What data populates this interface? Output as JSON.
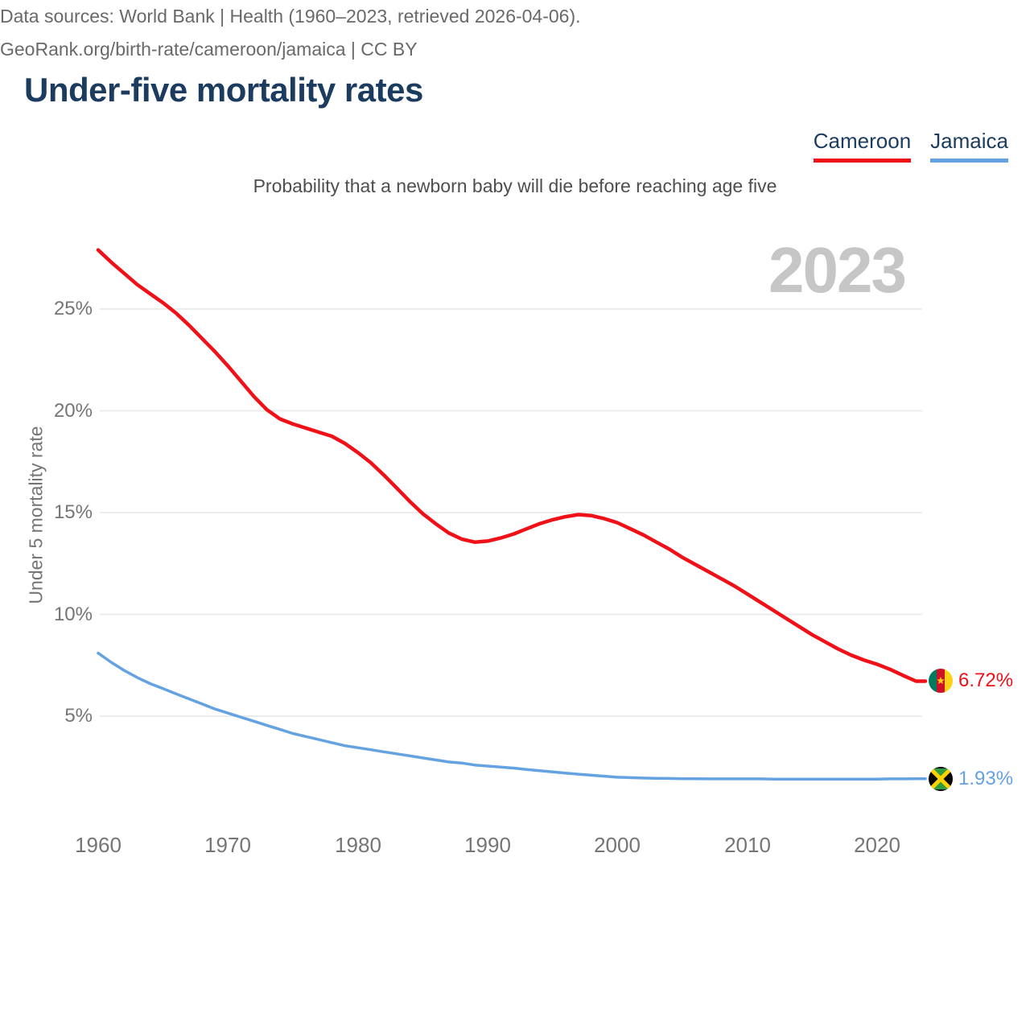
{
  "header": {
    "title": "Under-five mortality rates"
  },
  "subtitle": "Probability that a newborn baby will die before reaching age five",
  "watermark_year": "2023",
  "colors": {
    "title": "#1b3c5f",
    "cameroon_red": "#f01118",
    "jamaica_blue": "#64a2e2",
    "gridline": "#ececec",
    "tick_text": "#757575",
    "watermark": "#c6c6c6"
  },
  "chart_data": {
    "type": "line",
    "title": "Under-five mortality rates",
    "subtitle": "Probability that a newborn baby will die before reaching age five",
    "xlabel": "",
    "ylabel": "Under 5 mortality rate",
    "xlim": [
      1960,
      2023
    ],
    "ylim": [
      0,
      28.5
    ],
    "grid": "horizontal",
    "legend_position": "top-right",
    "y_tick_values": [
      25,
      20,
      15,
      10,
      5
    ],
    "y_tick_labels": [
      "25%",
      "20%",
      "15%",
      "10%",
      "5%"
    ],
    "x_tick_values": [
      1960,
      1970,
      1980,
      1990,
      2000,
      2010,
      2020
    ],
    "x_tick_labels": [
      "1960",
      "1970",
      "1980",
      "1990",
      "2000",
      "2010",
      "2020"
    ],
    "x": [
      1960,
      1961,
      1962,
      1963,
      1964,
      1965,
      1966,
      1967,
      1968,
      1969,
      1970,
      1971,
      1972,
      1973,
      1974,
      1975,
      1976,
      1977,
      1978,
      1979,
      1980,
      1981,
      1982,
      1983,
      1984,
      1985,
      1986,
      1987,
      1988,
      1989,
      1990,
      1991,
      1992,
      1993,
      1994,
      1995,
      1996,
      1997,
      1998,
      1999,
      2000,
      2001,
      2002,
      2003,
      2004,
      2005,
      2006,
      2007,
      2008,
      2009,
      2010,
      2011,
      2012,
      2013,
      2014,
      2015,
      2016,
      2017,
      2018,
      2019,
      2020,
      2021,
      2022,
      2023
    ],
    "series": [
      {
        "name": "Cameroon",
        "color": "#f01118",
        "end_label": "6.72%",
        "flag_icon": "cameroon-flag-icon",
        "values": [
          27.9,
          27.3,
          26.75,
          26.2,
          25.75,
          25.3,
          24.8,
          24.2,
          23.55,
          22.9,
          22.2,
          21.45,
          20.7,
          20.05,
          19.6,
          19.35,
          19.15,
          18.95,
          18.75,
          18.4,
          17.95,
          17.45,
          16.85,
          16.2,
          15.55,
          14.95,
          14.45,
          14.0,
          13.7,
          13.55,
          13.6,
          13.75,
          13.95,
          14.2,
          14.45,
          14.65,
          14.8,
          14.9,
          14.85,
          14.7,
          14.5,
          14.2,
          13.9,
          13.55,
          13.2,
          12.8,
          12.45,
          12.1,
          11.75,
          11.4,
          11.0,
          10.6,
          10.2,
          9.8,
          9.4,
          9.0,
          8.65,
          8.3,
          8.0,
          7.75,
          7.55,
          7.3,
          7.0,
          6.72
        ]
      },
      {
        "name": "Jamaica",
        "color": "#64a2e2",
        "end_label": "1.93%",
        "flag_icon": "jamaica-flag-icon",
        "values": [
          8.1,
          7.65,
          7.25,
          6.9,
          6.6,
          6.35,
          6.1,
          5.85,
          5.6,
          5.35,
          5.15,
          4.95,
          4.75,
          4.55,
          4.35,
          4.15,
          4.0,
          3.85,
          3.7,
          3.55,
          3.45,
          3.35,
          3.25,
          3.15,
          3.05,
          2.95,
          2.85,
          2.75,
          2.7,
          2.6,
          2.55,
          2.5,
          2.45,
          2.38,
          2.32,
          2.26,
          2.2,
          2.15,
          2.1,
          2.05,
          2.0,
          1.98,
          1.96,
          1.95,
          1.94,
          1.93,
          1.93,
          1.92,
          1.92,
          1.92,
          1.92,
          1.92,
          1.91,
          1.91,
          1.91,
          1.91,
          1.91,
          1.91,
          1.91,
          1.91,
          1.91,
          1.92,
          1.92,
          1.93
        ]
      }
    ]
  },
  "footer": {
    "line1": "Data sources: World Bank | Health (1960–2023, retrieved 2026-04-06).",
    "line2": "GeoRank.org/birth-rate/cameroon/jamaica | CC BY"
  }
}
